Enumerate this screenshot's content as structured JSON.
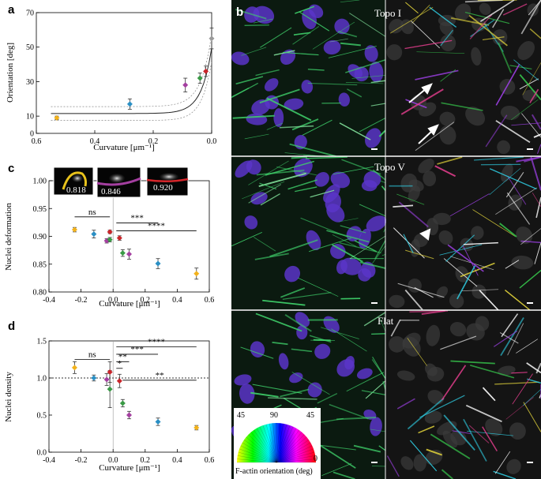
{
  "panels": {
    "a": "a",
    "b": "b",
    "c": "c",
    "d": "d"
  },
  "chart_data": [
    {
      "id": "a",
      "type": "scatter",
      "xlabel": "Curvature [μm⁻¹]",
      "ylabel": "Orientation [deg]",
      "xlim": [
        0.6,
        0.0
      ],
      "ylim": [
        0,
        70
      ],
      "xticks": [
        "0.6",
        "0.4",
        "0.2",
        "0.0"
      ],
      "yticks": [
        "0",
        "10",
        "30",
        "50",
        "70"
      ],
      "points": [
        {
          "x": 0.53,
          "y": 9,
          "err": 1,
          "color": "#f2b21c"
        },
        {
          "x": 0.28,
          "y": 17,
          "err": 3,
          "color": "#2a8fc4"
        },
        {
          "x": 0.09,
          "y": 28,
          "err": 4,
          "color": "#a43fa0"
        },
        {
          "x": 0.04,
          "y": 32,
          "err": 3,
          "color": "#3a9a46"
        },
        {
          "x": 0.02,
          "y": 36,
          "err": 3,
          "color": "#c9262b"
        },
        {
          "x": 0.0,
          "y": 55,
          "err": 6,
          "color": "#9a9a9a"
        }
      ],
      "fit_line": true
    },
    {
      "id": "c",
      "type": "scatter",
      "xlabel": "Curvature [μm⁻¹]",
      "ylabel": "Nuclei deformation",
      "xlim": [
        -0.4,
        0.6
      ],
      "ylim": [
        0.8,
        1.0
      ],
      "xticks": [
        "-0.4",
        "-0.2",
        "0.0",
        "0.2",
        "0.4",
        "0.6"
      ],
      "yticks": [
        "0.80",
        "0.85",
        "0.90",
        "0.95",
        "1.00"
      ],
      "points": [
        {
          "x": -0.24,
          "y": 0.912,
          "err": 0.004,
          "color": "#f2b21c"
        },
        {
          "x": -0.12,
          "y": 0.904,
          "err": 0.007,
          "color": "#2a8fc4"
        },
        {
          "x": -0.04,
          "y": 0.892,
          "err": 0.004,
          "color": "#a43fa0"
        },
        {
          "x": -0.02,
          "y": 0.894,
          "err": 0.004,
          "color": "#3a9a46"
        },
        {
          "x": -0.02,
          "y": 0.908,
          "err": 0.003,
          "color": "#c9262b"
        },
        {
          "x": 0.04,
          "y": 0.897,
          "err": 0.004,
          "color": "#c9262b"
        },
        {
          "x": 0.06,
          "y": 0.87,
          "err": 0.006,
          "color": "#3a9a46"
        },
        {
          "x": 0.1,
          "y": 0.868,
          "err": 0.009,
          "color": "#a43fa0"
        },
        {
          "x": 0.28,
          "y": 0.851,
          "err": 0.009,
          "color": "#2a8fc4"
        },
        {
          "x": 0.52,
          "y": 0.833,
          "err": 0.01,
          "color": "#f2b21c"
        }
      ],
      "significance": [
        {
          "label": "ns",
          "x1": -0.24,
          "x2": -0.02,
          "y": 0.935
        },
        {
          "label": "***",
          "x1": 0.02,
          "x2": 0.28,
          "y": 0.924
        },
        {
          "label": "****",
          "x1": 0.02,
          "x2": 0.52,
          "y": 0.91
        }
      ],
      "insets": [
        "0.818",
        "0.846",
        "0.920"
      ]
    },
    {
      "id": "d",
      "type": "scatter",
      "xlabel": "Curvature [μm⁻¹]",
      "ylabel": "Nuclei density",
      "xlim": [
        -0.4,
        0.6
      ],
      "ylim": [
        0.0,
        1.5
      ],
      "xticks": [
        "-0.4",
        "-0.2",
        "0.0",
        "0.2",
        "0.4",
        "0.6"
      ],
      "yticks": [
        "0.0",
        "0.5",
        "1.0",
        "1.5"
      ],
      "points": [
        {
          "x": -0.24,
          "y": 1.14,
          "err": 0.08,
          "color": "#f2b21c"
        },
        {
          "x": -0.12,
          "y": 1.0,
          "err": 0.04,
          "color": "#2a8fc4"
        },
        {
          "x": -0.04,
          "y": 0.98,
          "err": 0.08,
          "color": "#a43fa0"
        },
        {
          "x": -0.02,
          "y": 0.85,
          "err": 0.25,
          "color": "#3a9a46"
        },
        {
          "x": -0.02,
          "y": 1.08,
          "err": 0.14,
          "color": "#c9262b"
        },
        {
          "x": 0.04,
          "y": 0.96,
          "err": 0.09,
          "color": "#c9262b"
        },
        {
          "x": 0.06,
          "y": 0.66,
          "err": 0.05,
          "color": "#3a9a46"
        },
        {
          "x": 0.1,
          "y": 0.5,
          "err": 0.05,
          "color": "#a43fa0"
        },
        {
          "x": 0.28,
          "y": 0.41,
          "err": 0.05,
          "color": "#2a8fc4"
        },
        {
          "x": 0.52,
          "y": 0.33,
          "err": 0.03,
          "color": "#f2b21c"
        }
      ],
      "reference_line": 1.0,
      "significance": [
        {
          "label": "ns",
          "x1": -0.24,
          "x2": -0.02,
          "y": 1.25
        },
        {
          "label": "****",
          "x1": 0.02,
          "x2": 0.52,
          "y": 1.42
        },
        {
          "label": "***",
          "x1": 0.02,
          "x2": 0.28,
          "y": 1.32
        },
        {
          "label": "**",
          "x1": 0.02,
          "x2": 0.1,
          "y": 1.22
        },
        {
          "label": "*",
          "x1": 0.02,
          "x2": 0.06,
          "y": 1.13
        },
        {
          "label": "**",
          "x1": 0.06,
          "x2": 0.52,
          "y": 0.97
        }
      ]
    }
  ],
  "micrographs": {
    "labels": [
      "Topo I",
      "Topo V",
      "Flat"
    ]
  },
  "colorwheel": {
    "left": "45",
    "center": "90",
    "right": "45",
    "bottom": "0",
    "caption": "F-actin orientation (deg)"
  }
}
